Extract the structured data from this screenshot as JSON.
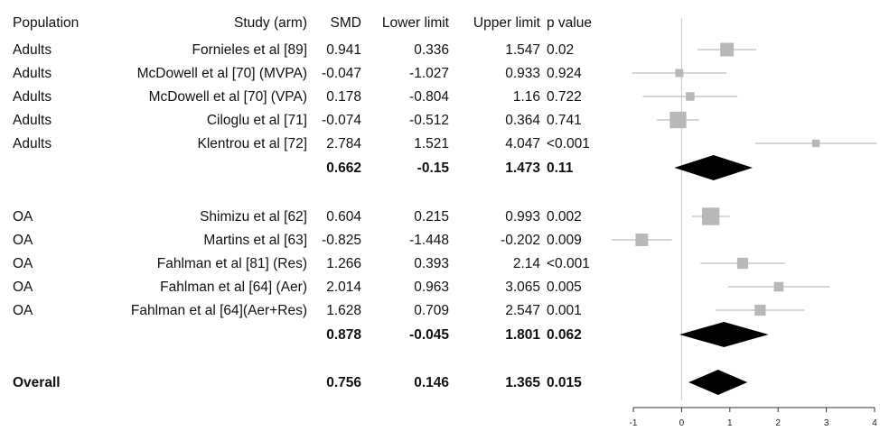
{
  "chart_data": {
    "type": "forest",
    "columns": [
      "Population",
      "Study (arm)",
      "SMD",
      "Lower limit",
      "Upper limit",
      "p value"
    ],
    "x_axis": {
      "range": [
        -1,
        4
      ],
      "ticks": [
        "-1",
        "0",
        "1",
        "2",
        "3",
        "4"
      ],
      "null_line": 0
    },
    "groups": [
      {
        "studies": [
          {
            "population": "Adults",
            "study": "Fornieles et al [89]",
            "smd": "0.941",
            "lower": "0.336",
            "upper": "1.547",
            "p": "0.02",
            "smd_value": 0.941,
            "lower_value": 0.336,
            "upper_value": 1.547,
            "weight": 1.0
          },
          {
            "population": "Adults",
            "study": "McDowell et al [70]  (MVPA)",
            "smd": "-0.047",
            "lower": "-1.027",
            "upper": "0.933",
            "p": "0.924",
            "smd_value": -0.047,
            "lower_value": -1.027,
            "upper_value": 0.933,
            "weight": 0.45
          },
          {
            "population": "Adults",
            "study": "McDowell et al  [70] (VPA)",
            "smd": "0.178",
            "lower": "-0.804",
            "upper": "1.16",
            "p": "0.722",
            "smd_value": 0.178,
            "lower_value": -0.804,
            "upper_value": 1.16,
            "weight": 0.5
          },
          {
            "population": "Adults",
            "study": "Ciloglu et al  [71]",
            "smd": "-0.074",
            "lower": "-0.512",
            "upper": "0.364",
            "p": "0.741",
            "smd_value": -0.074,
            "lower_value": -0.512,
            "upper_value": 0.364,
            "weight": 1.3
          },
          {
            "population": "Adults",
            "study": "Klentrou et al  [72]",
            "smd": "2.784",
            "lower": "1.521",
            "upper": "4.047",
            "p": "<0.001",
            "smd_value": 2.784,
            "lower_value": 1.521,
            "upper_value": 4.047,
            "weight": 0.4
          }
        ],
        "summary": {
          "smd": "0.662",
          "lower": "-0.15",
          "upper": "1.473",
          "p": "0.11",
          "smd_value": 0.662,
          "lower_value": -0.15,
          "upper_value": 1.473
        }
      },
      {
        "studies": [
          {
            "population": "OA",
            "study": "Shimizu et al  [62]",
            "smd": "0.604",
            "lower": "0.215",
            "upper": "0.993",
            "p": "0.002",
            "smd_value": 0.604,
            "lower_value": 0.215,
            "upper_value": 0.993,
            "weight": 1.4
          },
          {
            "population": "OA",
            "study": "Martins et al  [63]",
            "smd": "-0.825",
            "lower": "-1.448",
            "upper": "-0.202",
            "p": "0.009",
            "smd_value": -0.825,
            "lower_value": -1.448,
            "upper_value": -0.202,
            "weight": 0.9
          },
          {
            "population": "OA",
            "study": "Fahlman et al [81] (Res)",
            "smd": "1.266",
            "lower": "0.393",
            "upper": "2.14",
            "p": "<0.001",
            "smd_value": 1.266,
            "lower_value": 0.393,
            "upper_value": 2.14,
            "weight": 0.75
          },
          {
            "population": "OA",
            "study": "Fahlman et al [64] (Aer)",
            "smd": "2.014",
            "lower": "0.963",
            "upper": "3.065",
            "p": "0.005",
            "smd_value": 2.014,
            "lower_value": 0.963,
            "upper_value": 3.065,
            "weight": 0.6
          },
          {
            "population": "OA",
            "study": "Fahlman et al [64](Aer+Res)",
            "smd": "1.628",
            "lower": "0.709",
            "upper": "2.547",
            "p": "0.001",
            "smd_value": 1.628,
            "lower_value": 0.709,
            "upper_value": 2.547,
            "weight": 0.75
          }
        ],
        "summary": {
          "smd": "0.878",
          "lower": "-0.045",
          "upper": "1.801",
          "p": "0.062",
          "smd_value": 0.878,
          "lower_value": -0.045,
          "upper_value": 1.801
        }
      }
    ],
    "overall": {
      "label": "Overall",
      "smd": "0.756",
      "lower": "0.146",
      "upper": "1.365",
      "p": "0.015",
      "smd_value": 0.756,
      "lower_value": 0.146,
      "upper_value": 1.365
    },
    "colors": {
      "study_marker": "#b8b8b8",
      "ci_line": "#bdbdbd",
      "summary_diamond": "#000000",
      "null_line": "#c8c8c8",
      "text": "#111111"
    }
  }
}
